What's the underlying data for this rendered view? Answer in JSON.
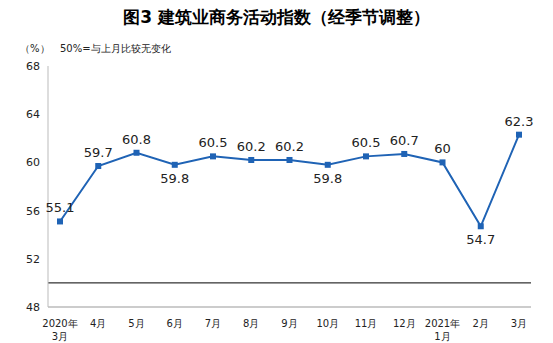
{
  "chart_data": {
    "type": "line",
    "title": "图3 建筑业商务活动指数（经季节调整）",
    "y_label": "（%）",
    "annotation": "50%=与上月比较无变化",
    "baseline": 50,
    "categories": [
      "2020年3月",
      "4月",
      "5月",
      "6月",
      "7月",
      "8月",
      "9月",
      "10月",
      "11月",
      "12月",
      "2021年1月",
      "2月",
      "3月"
    ],
    "values": [
      55.1,
      59.7,
      60.8,
      59.8,
      60.5,
      60.2,
      60.2,
      59.8,
      60.5,
      60.7,
      60.0,
      54.7,
      62.3
    ],
    "color": "#1f63b5",
    "marker": "square",
    "ylim": [
      48,
      68
    ],
    "yticks": [
      48,
      52,
      56,
      60,
      64,
      68
    ],
    "grid": false,
    "data_labels": true
  }
}
